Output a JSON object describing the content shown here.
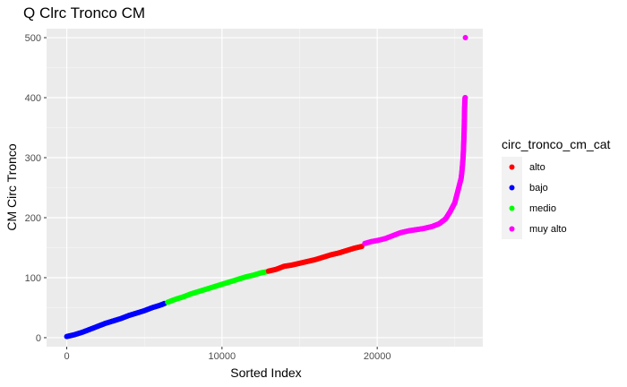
{
  "chart_data": {
    "type": "scatter",
    "title": "Q Clrc Tronco CM",
    "xlabel": "Sorted Index",
    "ylabel": "CM Circ Tronco",
    "xlim": [
      -1300,
      26800
    ],
    "ylim": [
      -15,
      515
    ],
    "x_ticks": [
      0,
      10000,
      20000
    ],
    "y_ticks": [
      0,
      100,
      200,
      300,
      400,
      500
    ],
    "grid": true,
    "legend": {
      "title": "circ_tronco_cm_cat",
      "position": "right",
      "entries": [
        {
          "label": "alto",
          "color": "#ff0000"
        },
        {
          "label": "bajo",
          "color": "#0000ff"
        },
        {
          "label": "medio",
          "color": "#00ff00"
        },
        {
          "label": "muy alto",
          "color": "#ff00ff"
        }
      ]
    },
    "series": [
      {
        "name": "bajo",
        "color": "#0000ff",
        "x": [
          0,
          500,
          1000,
          1500,
          2000,
          2500,
          3000,
          3500,
          4000,
          4500,
          5000,
          5500,
          6000,
          6300
        ],
        "y": [
          2,
          5,
          9,
          14,
          19,
          24,
          28,
          32,
          37,
          41,
          45,
          50,
          54,
          57
        ]
      },
      {
        "name": "medio",
        "color": "#00ff00",
        "x": [
          6500,
          7000,
          7500,
          8000,
          8500,
          9000,
          9500,
          10000,
          10500,
          11000,
          11500,
          12000,
          12500,
          12900
        ],
        "y": [
          59,
          64,
          68,
          73,
          77,
          81,
          85,
          89,
          93,
          97,
          101,
          104,
          108,
          110
        ]
      },
      {
        "name": "alto",
        "color": "#ff0000",
        "x": [
          13000,
          13500,
          14000,
          14500,
          15000,
          15500,
          16000,
          16500,
          17000,
          17500,
          18000,
          18500,
          19000
        ],
        "y": [
          111,
          114,
          119,
          121,
          124,
          127,
          130,
          134,
          138,
          141,
          145,
          149,
          152
        ]
      },
      {
        "name": "muy alto",
        "color": "#ff00ff",
        "x": [
          19200,
          19600,
          20000,
          20500,
          21000,
          21500,
          22000,
          22500,
          23000,
          23500,
          24000,
          24400,
          24700,
          25000,
          25200,
          25300,
          25400,
          25450,
          25500,
          25530,
          25560,
          25580,
          25600,
          25610,
          25620,
          25630,
          25640,
          25650,
          25660,
          25670,
          25680
        ],
        "y": [
          157,
          160,
          162,
          165,
          170,
          175,
          178,
          180,
          182,
          185,
          190,
          198,
          210,
          225,
          245,
          255,
          265,
          275,
          290,
          300,
          315,
          330,
          345,
          360,
          370,
          385,
          393,
          397,
          400,
          400,
          500
        ]
      }
    ]
  }
}
